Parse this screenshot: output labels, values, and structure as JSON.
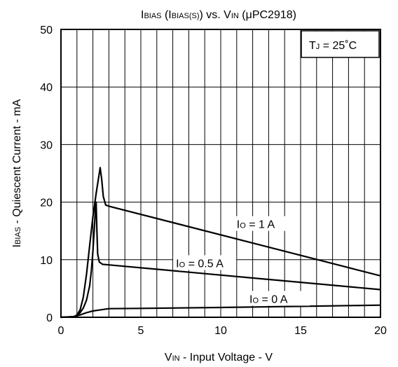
{
  "chart_data": {
    "type": "line",
    "title": {
      "parts": [
        {
          "text": "I",
          "size": "big"
        },
        {
          "text": "BIAS",
          "size": "small"
        },
        {
          "text": " (I",
          "size": "big"
        },
        {
          "text": "BIAS(S)",
          "size": "small"
        },
        {
          "text": ") vs. V",
          "size": "big"
        },
        {
          "text": "IN",
          "size": "small"
        },
        {
          "text": " (",
          "size": "big"
        },
        {
          "text": "μ",
          "size": "big"
        },
        {
          "text": "PC2918)",
          "size": "big"
        }
      ]
    },
    "xlabel": {
      "parts": [
        {
          "text": "V",
          "size": "big"
        },
        {
          "text": "IN",
          "size": "small"
        },
        {
          "text": " - Input Voltage - V",
          "size": "big"
        }
      ]
    },
    "ylabel": {
      "parts": [
        {
          "text": "I",
          "size": "big"
        },
        {
          "text": "BIAS",
          "size": "small"
        },
        {
          "text": " - Quiescent Current - mA",
          "size": "big"
        }
      ]
    },
    "xlim": [
      0,
      20
    ],
    "ylim": [
      0,
      50
    ],
    "xticks": [
      0,
      5,
      10,
      15,
      20
    ],
    "yticks": [
      0,
      10,
      20,
      30,
      40,
      50
    ],
    "x_grid_step": 1,
    "y_grid_step": 10,
    "condition": {
      "parts": [
        {
          "text": "T",
          "size": "big"
        },
        {
          "text": "J",
          "size": "small"
        },
        {
          "text": " = 25˚C",
          "size": "big"
        }
      ]
    },
    "series": [
      {
        "name": "1 A",
        "label": {
          "parts": [
            {
              "text": "I",
              "size": "big"
            },
            {
              "text": "O",
              "size": "small"
            },
            {
              "text": " = 1 A",
              "size": "big"
            }
          ],
          "at": [
            11.0,
            15.5
          ]
        },
        "points": [
          [
            0,
            0
          ],
          [
            0.8,
            0.1
          ],
          [
            1.0,
            0.4
          ],
          [
            1.2,
            1.3
          ],
          [
            1.4,
            3.5
          ],
          [
            1.6,
            7.5
          ],
          [
            1.8,
            12.5
          ],
          [
            2.0,
            17.5
          ],
          [
            2.2,
            21.5
          ],
          [
            2.4,
            25.0
          ],
          [
            2.45,
            26.0
          ],
          [
            2.55,
            24.0
          ],
          [
            2.65,
            21.0
          ],
          [
            2.8,
            19.5
          ],
          [
            3.0,
            19.3
          ],
          [
            20,
            7.2
          ]
        ]
      },
      {
        "name": "0.5 A",
        "label": {
          "parts": [
            {
              "text": "I",
              "size": "big"
            },
            {
              "text": "O",
              "size": "small"
            },
            {
              "text": " = 0.5 A",
              "size": "big"
            }
          ],
          "at": [
            7.2,
            8.7
          ]
        },
        "points": [
          [
            0,
            0
          ],
          [
            0.8,
            0.1
          ],
          [
            1.0,
            0.3
          ],
          [
            1.2,
            0.8
          ],
          [
            1.4,
            1.6
          ],
          [
            1.6,
            3.0
          ],
          [
            1.8,
            5.5
          ],
          [
            1.9,
            8.0
          ],
          [
            2.0,
            11.5
          ],
          [
            2.1,
            16.0
          ],
          [
            2.15,
            18.5
          ],
          [
            2.2,
            20.0
          ],
          [
            2.25,
            15.0
          ],
          [
            2.3,
            11.0
          ],
          [
            2.4,
            9.6
          ],
          [
            2.6,
            9.2
          ],
          [
            3.0,
            9.1
          ],
          [
            20,
            4.8
          ]
        ]
      },
      {
        "name": "0 A",
        "label": {
          "parts": [
            {
              "text": "I",
              "size": "big"
            },
            {
              "text": "O",
              "size": "small"
            },
            {
              "text": " = 0 A",
              "size": "big"
            }
          ],
          "at": [
            11.8,
            2.5
          ]
        },
        "points": [
          [
            0,
            0
          ],
          [
            0.8,
            0.1
          ],
          [
            1.2,
            0.4
          ],
          [
            1.6,
            0.8
          ],
          [
            2.0,
            1.1
          ],
          [
            2.5,
            1.3
          ],
          [
            3.0,
            1.5
          ],
          [
            5.0,
            1.55
          ],
          [
            10.0,
            1.7
          ],
          [
            15.0,
            1.9
          ],
          [
            20.0,
            2.1
          ]
        ]
      }
    ]
  }
}
